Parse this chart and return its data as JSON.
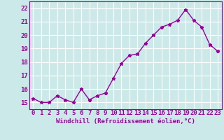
{
  "x": [
    0,
    1,
    2,
    3,
    4,
    5,
    6,
    7,
    8,
    9,
    10,
    11,
    12,
    13,
    14,
    15,
    16,
    17,
    18,
    19,
    20,
    21,
    22,
    23
  ],
  "y": [
    15.3,
    15.0,
    15.0,
    15.5,
    15.2,
    15.0,
    16.0,
    15.2,
    15.5,
    15.7,
    16.8,
    17.9,
    18.5,
    18.6,
    19.4,
    20.0,
    20.6,
    20.8,
    21.1,
    21.9,
    21.1,
    20.6,
    19.3,
    18.8
  ],
  "line_color": "#990099",
  "marker": "*",
  "marker_size": 3.5,
  "xlabel": "Windchill (Refroidissement éolien,°C)",
  "ylim": [
    14.5,
    22.5
  ],
  "xlim": [
    -0.5,
    23.5
  ],
  "yticks": [
    15,
    16,
    17,
    18,
    19,
    20,
    21,
    22
  ],
  "xticks": [
    0,
    1,
    2,
    3,
    4,
    5,
    6,
    7,
    8,
    9,
    10,
    11,
    12,
    13,
    14,
    15,
    16,
    17,
    18,
    19,
    20,
    21,
    22,
    23
  ],
  "background_color": "#cce9e9",
  "grid_color": "#ffffff",
  "line_color_axis": "#990099",
  "tick_color": "#990099",
  "xlabel_color": "#990099",
  "xlabel_fontsize": 6.5,
  "tick_fontsize": 6.5,
  "line_width": 1.0
}
